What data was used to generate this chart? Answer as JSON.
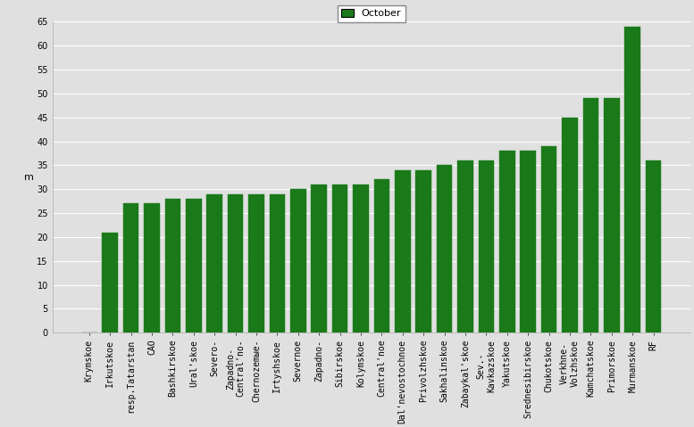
{
  "categories": [
    "Krymskoe",
    "Irkutskoe",
    "resp.Tatarstan",
    "CAO",
    "Bashkirskoe",
    "Ural'skoe",
    "Severo-",
    "Zapadno-\nCentral'no-",
    "Chernozemыe-",
    "Irtyshskoe",
    "Severnoe",
    "Zapadno-",
    "Sibirskoe",
    "Kolymskoe",
    "Central'noe",
    "Dal'nevostochnoe",
    "Privolzhskoe",
    "Sakhalinskoe",
    "Zabaykal'skoe",
    "Sev.-\nKavkazskoe",
    "Yakutskoe",
    "Srednesibirskoe",
    "Chukotskoe",
    "Verkhne-\nVolzhskoe",
    "Kamchatskoe",
    "Primorskoe",
    "Murmanskoe",
    "RF"
  ],
  "values": [
    0,
    21,
    27,
    27,
    28,
    28,
    29,
    29,
    29,
    29,
    30,
    31,
    31,
    31,
    32,
    34,
    34,
    35,
    36,
    36,
    38,
    38,
    39,
    45,
    49,
    49,
    64,
    36
  ],
  "bar_color": "#1a7a1a",
  "bar_edge_color": "#1a7a1a",
  "ylabel": "m",
  "ylim": [
    0,
    65
  ],
  "yticks": [
    0,
    5,
    10,
    15,
    20,
    25,
    30,
    35,
    40,
    45,
    50,
    55,
    60,
    65
  ],
  "legend_label": "October",
  "legend_color": "#1a7a1a",
  "bg_color": "#e0e0e0",
  "grid_color": "#ffffff",
  "axis_fontsize": 8,
  "tick_fontsize": 7
}
